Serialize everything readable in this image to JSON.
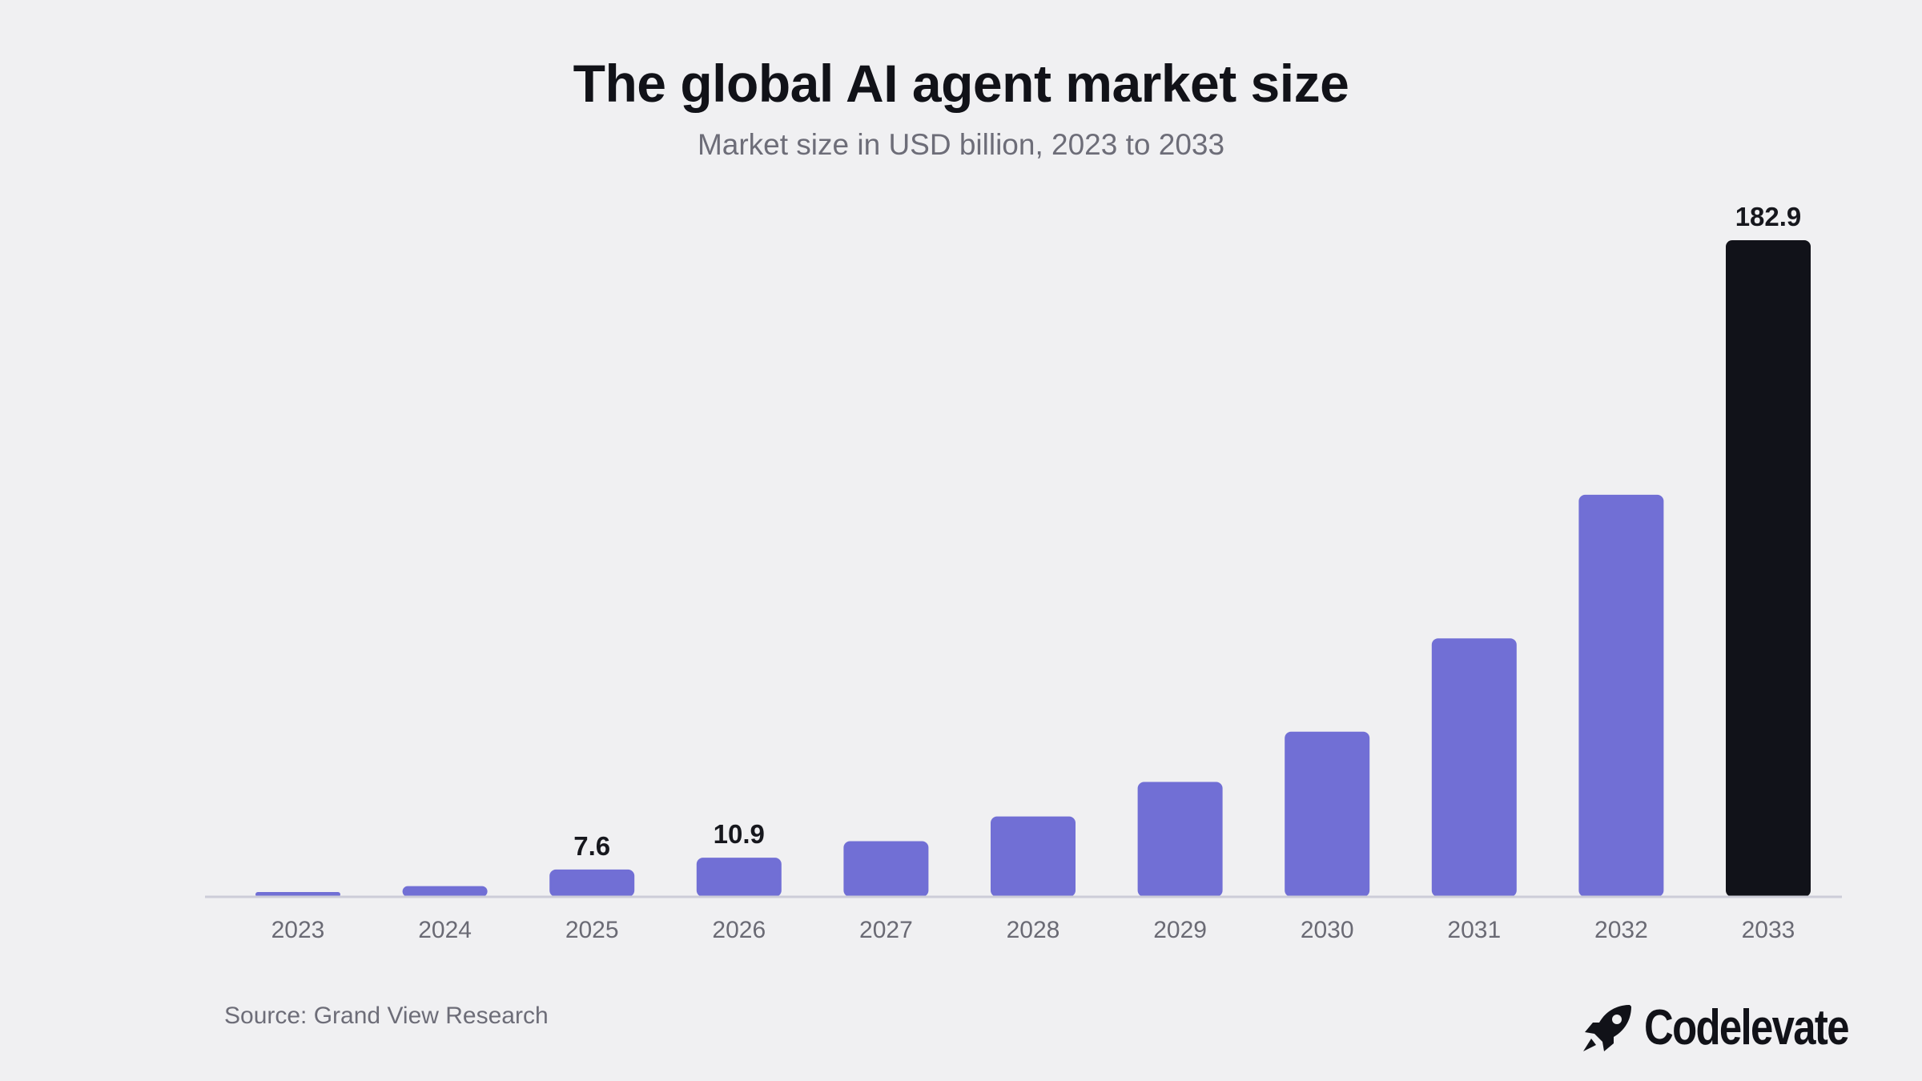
{
  "header": {
    "title": "The global AI agent market size",
    "subtitle": "Market size in USD billion, 2023 to 2033"
  },
  "footer": {
    "source": "Source: Grand View Research",
    "brand": "Codelevate",
    "brand_icon": "rocket-icon"
  },
  "chart_data": {
    "type": "bar",
    "title": "The global AI agent market size",
    "subtitle": "Market size in USD billion, 2023 to 2033",
    "xlabel": "",
    "ylabel": "",
    "categories": [
      "2023",
      "2024",
      "2025",
      "2026",
      "2027",
      "2028",
      "2029",
      "2030",
      "2031",
      "2032",
      "2033"
    ],
    "values": [
      1.0,
      3.0,
      7.6,
      10.9,
      15.5,
      22.4,
      32.0,
      46.0,
      72.0,
      112.0,
      182.9
    ],
    "data_labels": [
      "",
      "",
      "7.6",
      "10.9",
      "",
      "",
      "",
      "",
      "",
      "",
      "182.9"
    ],
    "ylim": [
      0,
      182.9
    ],
    "grid": false,
    "legend": "none",
    "colors": {
      "bar": "#716fd5",
      "highlight": "#111219",
      "baseline": "#cdcdd8"
    },
    "highlight_index": 10
  }
}
